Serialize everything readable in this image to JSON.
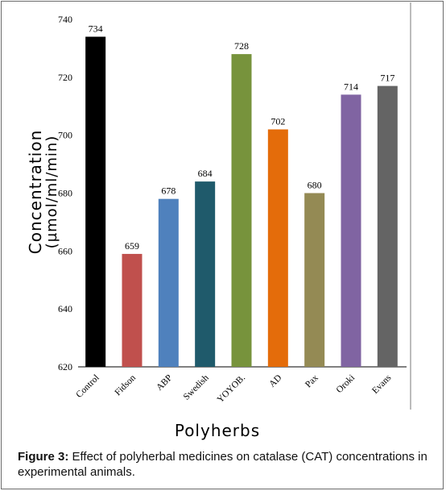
{
  "chart_data": {
    "type": "bar",
    "categories": [
      "Control",
      "Fidson",
      "ABP",
      "Swedish",
      "YOYOB.",
      "AD",
      "Pax",
      "Oroki",
      "Evans"
    ],
    "values": [
      734,
      659,
      678,
      684,
      728,
      702,
      680,
      714,
      717
    ],
    "colors": [
      "#000000",
      "#c0504d",
      "#4f81bd",
      "#1f5a6b",
      "#77933c",
      "#e46c0a",
      "#948a54",
      "#8064a2",
      "#646464"
    ],
    "xlabel": "Polyherbs",
    "ylabel_line1": "Concentration",
    "ylabel_line2": "(µmol/ml/min)",
    "ylim": [
      620,
      740
    ],
    "yticks": [
      620,
      640,
      660,
      680,
      700,
      720,
      740
    ],
    "grid": false
  },
  "caption": {
    "label": "Figure 3:",
    "text": " Effect of polyherbal medicines on catalase (CAT) concentrations in experimental animals."
  }
}
